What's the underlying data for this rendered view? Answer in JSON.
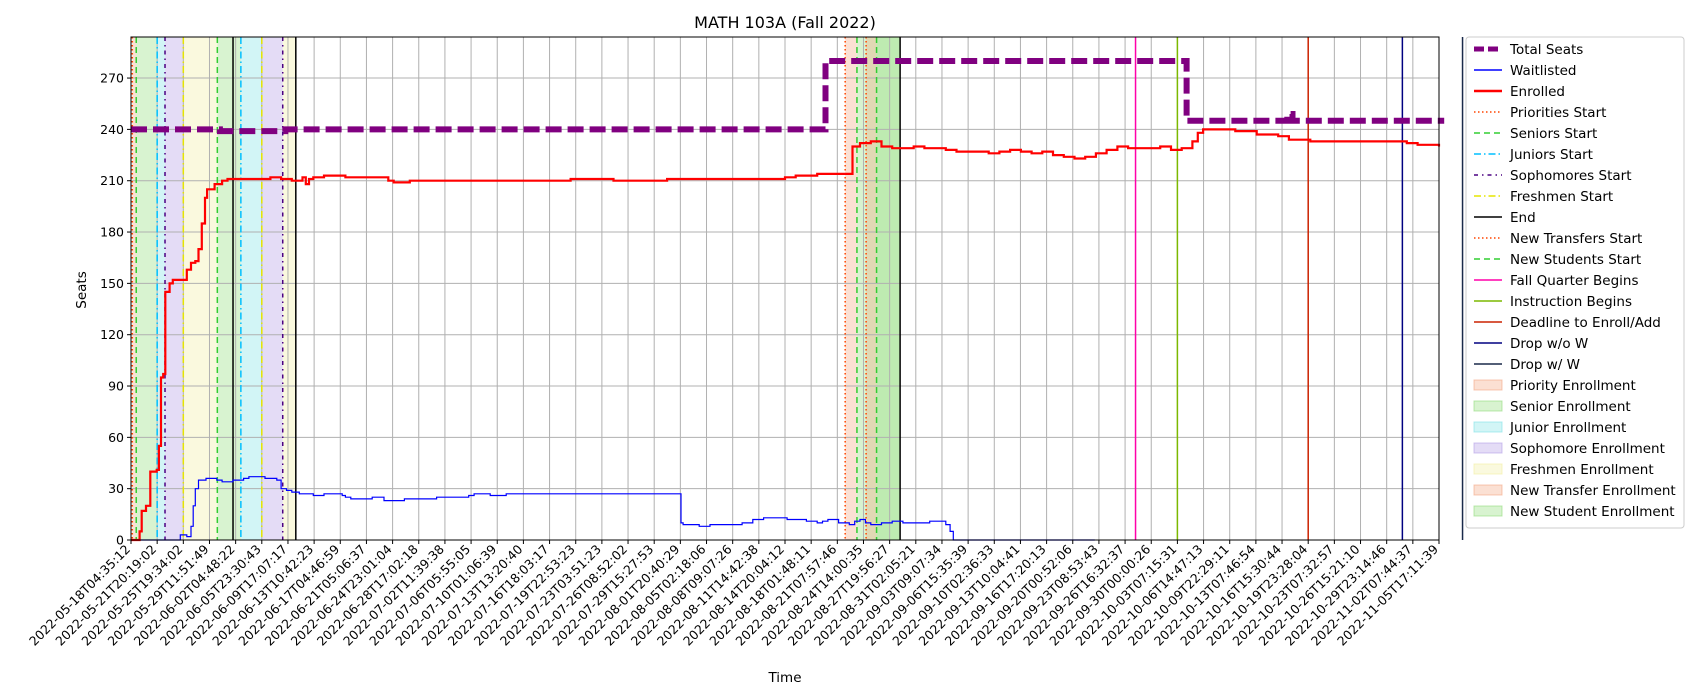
{
  "chart_data": {
    "type": "line",
    "title": "MATH 103A (Fall 2022)",
    "xlabel": "Time",
    "ylabel": "Seats",
    "xlim": [
      "2022-05-18T04:35:12",
      "2022-11-08T17:11:39"
    ],
    "ylim": [
      0,
      294
    ],
    "grid": true,
    "legend_position": "outside-right",
    "x_tick_labels": [
      "2022-05-18T04:35:12",
      "2022-05-21T20:19:02",
      "2022-05-25T19:34:02",
      "2022-05-29T11:51:49",
      "2022-06-02T04:48:22",
      "2022-06-05T23:30:43",
      "2022-06-09T17:07:17",
      "2022-06-13T10:42:23",
      "2022-06-17T04:46:59",
      "2022-06-21T05:06:37",
      "2022-06-24T23:01:04",
      "2022-06-28T17:02:18",
      "2022-07-02T11:39:38",
      "2022-07-06T05:55:05",
      "2022-07-10T01:06:39",
      "2022-07-13T13:20:40",
      "2022-07-16T18:03:17",
      "2022-07-19T22:53:23",
      "2022-07-23T03:51:23",
      "2022-07-26T08:52:02",
      "2022-07-29T15:27:53",
      "2022-08-01T20:40:29",
      "2022-08-05T02:18:06",
      "2022-08-08T09:07:26",
      "2022-08-11T14:42:38",
      "2022-08-14T20:04:12",
      "2022-08-18T01:48:11",
      "2022-08-21T07:57:46",
      "2022-08-24T14:00:35",
      "2022-08-27T19:56:27",
      "2022-08-31T02:05:21",
      "2022-09-03T09:07:34",
      "2022-09-06T15:35:39",
      "2022-09-10T02:36:33",
      "2022-09-13T10:04:41",
      "2022-09-16T17:20:13",
      "2022-09-20T00:52:06",
      "2022-09-23T08:53:43",
      "2022-09-26T16:32:37",
      "2022-09-30T00:00:26",
      "2022-10-03T07:15:31",
      "2022-10-06T14:47:13",
      "2022-10-09T22:29:11",
      "2022-10-13T07:46:54",
      "2022-10-16T15:30:44",
      "2022-10-19T23:28:04",
      "2022-10-23T07:32:57",
      "2022-10-26T15:21:10",
      "2022-10-29T23:14:46",
      "2022-11-02T07:44:37",
      "2022-11-05T17:11:39"
    ],
    "y_ticks": [
      0,
      30,
      60,
      90,
      120,
      150,
      180,
      210,
      240,
      270
    ],
    "series": [
      {
        "name": "Total Seats",
        "color": "#800080",
        "style": "dash-thick",
        "points": [
          [
            0,
            240
          ],
          [
            1.0,
            240
          ],
          [
            3.4,
            239
          ],
          [
            5,
            239
          ],
          [
            5.9,
            240
          ],
          [
            26.4,
            240
          ],
          [
            26.55,
            280
          ],
          [
            40.2,
            280
          ],
          [
            40.35,
            245
          ],
          [
            44,
            245
          ],
          [
            44.2,
            249
          ],
          [
            44.4,
            245
          ],
          [
            50.2,
            245
          ]
        ]
      },
      {
        "name": "Waitlisted",
        "color": "#0000ff",
        "style": "solid",
        "points": [
          [
            0,
            0
          ],
          [
            4.5,
            0
          ],
          [
            4.6,
            3
          ],
          [
            5.2,
            2
          ],
          [
            5.6,
            8
          ],
          [
            5.8,
            20
          ],
          [
            6.0,
            30
          ],
          [
            6.3,
            35
          ],
          [
            7,
            36
          ],
          [
            8,
            35
          ],
          [
            8.5,
            34
          ],
          [
            9.5,
            35
          ],
          [
            10.5,
            36
          ],
          [
            11,
            37
          ],
          [
            12.5,
            36
          ],
          [
            13.6,
            35
          ],
          [
            14,
            30
          ],
          [
            14.5,
            29
          ],
          [
            15,
            28
          ],
          [
            15.7,
            27
          ],
          [
            17,
            26
          ],
          [
            18,
            27
          ],
          [
            19.7,
            26
          ],
          [
            20,
            25
          ],
          [
            20.5,
            24
          ],
          [
            21.5,
            24
          ],
          [
            22.5,
            25
          ],
          [
            23.6,
            23
          ],
          [
            24.5,
            23
          ],
          [
            25.5,
            24
          ],
          [
            28,
            24
          ],
          [
            28.5,
            25
          ],
          [
            31,
            25
          ],
          [
            31.5,
            26
          ],
          [
            32,
            27
          ],
          [
            33.5,
            26
          ],
          [
            34,
            26
          ],
          [
            35,
            27
          ],
          [
            43.5,
            27
          ],
          [
            45,
            27
          ],
          [
            46.5,
            27
          ],
          [
            47,
            27
          ],
          [
            51.2,
            27
          ],
          [
            51.3,
            10
          ],
          [
            51.5,
            9
          ],
          [
            52.5,
            9
          ],
          [
            53,
            8
          ],
          [
            54,
            9
          ],
          [
            55.5,
            9
          ],
          [
            56,
            9
          ],
          [
            57,
            10
          ],
          [
            58,
            12
          ],
          [
            59,
            13
          ],
          [
            60.5,
            13
          ],
          [
            61.2,
            12
          ],
          [
            62.5,
            12
          ],
          [
            63,
            11
          ],
          [
            64,
            10
          ],
          [
            64.5,
            11
          ],
          [
            65,
            12
          ],
          [
            66,
            10
          ],
          [
            67,
            9
          ],
          [
            67.5,
            11
          ],
          [
            68,
            12
          ],
          [
            68.5,
            10
          ],
          [
            69,
            9
          ],
          [
            70,
            10
          ],
          [
            71,
            11
          ],
          [
            72,
            10
          ],
          [
            73,
            10
          ],
          [
            74.5,
            11
          ],
          [
            75.5,
            11
          ],
          [
            76,
            9
          ],
          [
            76.4,
            5
          ],
          [
            76.7,
            0
          ],
          [
            84,
            0
          ],
          [
            89.5,
            0
          ],
          [
            89.9,
            0
          ]
        ]
      },
      {
        "name": "Enrolled",
        "color": "#ff0000",
        "style": "solid-thick",
        "points": [
          [
            0,
            0
          ],
          [
            0.5,
            0
          ],
          [
            0.8,
            5
          ],
          [
            1.0,
            17
          ],
          [
            1.4,
            20
          ],
          [
            1.8,
            40
          ],
          [
            2.4,
            41
          ],
          [
            2.6,
            55
          ],
          [
            2.8,
            95
          ],
          [
            3.0,
            97
          ],
          [
            3.2,
            145
          ],
          [
            3.6,
            150
          ],
          [
            3.9,
            152
          ],
          [
            4.8,
            152
          ],
          [
            5.2,
            158
          ],
          [
            5.6,
            162
          ],
          [
            6.0,
            163
          ],
          [
            6.3,
            170
          ],
          [
            6.6,
            185
          ],
          [
            6.9,
            200
          ],
          [
            7.1,
            205
          ],
          [
            7.8,
            208
          ],
          [
            8.5,
            210
          ],
          [
            9,
            211
          ],
          [
            10,
            211
          ],
          [
            13,
            212
          ],
          [
            14,
            211
          ],
          [
            15,
            210
          ],
          [
            16,
            212
          ],
          [
            16.3,
            208
          ],
          [
            16.6,
            211
          ],
          [
            17,
            212
          ],
          [
            18,
            213
          ],
          [
            20,
            212
          ],
          [
            22,
            212
          ],
          [
            24,
            210
          ],
          [
            24.5,
            209
          ],
          [
            25,
            209
          ],
          [
            26,
            210
          ],
          [
            40,
            210
          ],
          [
            41,
            211
          ],
          [
            45,
            210
          ],
          [
            50,
            211
          ],
          [
            60,
            211
          ],
          [
            61,
            212
          ],
          [
            62,
            213
          ],
          [
            64,
            214
          ],
          [
            67.2,
            214
          ],
          [
            67.3,
            230
          ],
          [
            68,
            232
          ],
          [
            69,
            233
          ],
          [
            70,
            230
          ],
          [
            71,
            229
          ],
          [
            72,
            229
          ],
          [
            73,
            230
          ],
          [
            74,
            229
          ],
          [
            75,
            229
          ],
          [
            76,
            228
          ],
          [
            77,
            227
          ],
          [
            78,
            227
          ],
          [
            80,
            226
          ],
          [
            81,
            227
          ],
          [
            82,
            228
          ],
          [
            83,
            227
          ],
          [
            84,
            226
          ],
          [
            85,
            227
          ],
          [
            86,
            225
          ],
          [
            87,
            224
          ],
          [
            88,
            223
          ],
          [
            89,
            224
          ],
          [
            90,
            226
          ],
          [
            91,
            228
          ],
          [
            92,
            230
          ],
          [
            93,
            229
          ],
          [
            95,
            229
          ],
          [
            96,
            230
          ],
          [
            97,
            228
          ],
          [
            98,
            229
          ],
          [
            99,
            233
          ],
          [
            99.5,
            238
          ],
          [
            100,
            240
          ],
          [
            101,
            240
          ],
          [
            103,
            239
          ],
          [
            105,
            237
          ],
          [
            107,
            236
          ],
          [
            108,
            234
          ],
          [
            110,
            233
          ],
          [
            115,
            233
          ],
          [
            119,
            232
          ],
          [
            120,
            231
          ],
          [
            122,
            230
          ]
        ]
      }
    ],
    "vlines": [
      {
        "name": "Priorities Start",
        "color": "#ff4500",
        "style": "dotted",
        "x": [
          0.05,
          27.3
        ]
      },
      {
        "name": "Seniors Start",
        "color": "#32cd32",
        "style": "dashed",
        "x": [
          0.2,
          3.3,
          27.75
        ]
      },
      {
        "name": "Juniors Start",
        "color": "#00bfff",
        "style": "dashdot",
        "x": [
          1.0,
          4.2
        ]
      },
      {
        "name": "Sophomores Start",
        "color": "#4b0082",
        "style": "dashdot-dense",
        "x": [
          1.3,
          5.8
        ]
      },
      {
        "name": "Freshmen Start",
        "color": "#e5e500",
        "style": "dashdot",
        "x": [
          2.0,
          5.0
        ]
      },
      {
        "name": "End",
        "color": "#000000",
        "style": "solid",
        "x": [
          3.9,
          6.3,
          29.4
        ]
      },
      {
        "name": "New Transfers Start",
        "color": "#ff4500",
        "style": "dotted",
        "x": [
          28.1
        ]
      },
      {
        "name": "New Students Start",
        "color": "#32cd32",
        "style": "dashed",
        "x": [
          28.5
        ]
      },
      {
        "name": "Fall Quarter Begins",
        "color": "#ff00aa",
        "style": "solid",
        "x": [
          38.4
        ]
      },
      {
        "name": "Instruction Begins",
        "color": "#7cb900",
        "style": "solid",
        "x": [
          40.0
        ]
      },
      {
        "name": "Deadline to Enroll/Add",
        "color": "#cc2200",
        "style": "solid",
        "x": [
          45.0
        ]
      },
      {
        "name": "Drop w/o W",
        "color": "#000080",
        "style": "solid",
        "x": [
          48.6
        ]
      },
      {
        "name": "Drop w/ W",
        "color": "#1a2a4a",
        "style": "solid",
        "x": [
          50.9
        ]
      }
    ],
    "spans": [
      {
        "name": "Priority Enrollment",
        "color": "#f4a582",
        "ranges": [
          [
            0.05,
            0.2
          ],
          [
            27.3,
            27.75
          ]
        ]
      },
      {
        "name": "Senior Enrollment",
        "color": "#8fdc79",
        "ranges": [
          [
            0.2,
            1.0
          ],
          [
            3.3,
            4.2
          ],
          [
            27.75,
            29.4
          ]
        ]
      },
      {
        "name": "Junior Enrollment",
        "color": "#7fe1e6",
        "ranges": [
          [
            1.0,
            1.3
          ],
          [
            4.2,
            5.0
          ]
        ]
      },
      {
        "name": "Sophomore Enrollment",
        "color": "#b39ce6",
        "ranges": [
          [
            1.3,
            2.0
          ],
          [
            5.0,
            5.8
          ]
        ]
      },
      {
        "name": "Freshmen Enrollment",
        "color": "#f2eea0",
        "ranges": [
          [
            2.0,
            3.3
          ],
          [
            5.8,
            6.3
          ]
        ]
      },
      {
        "name": "New Transfer Enrollment",
        "color": "#f4a582",
        "ranges": [
          [
            28.1,
            28.5
          ]
        ]
      },
      {
        "name": "New Student Enrollment",
        "color": "#8fdc79",
        "ranges": [
          [
            28.5,
            29.4
          ]
        ]
      }
    ]
  }
}
